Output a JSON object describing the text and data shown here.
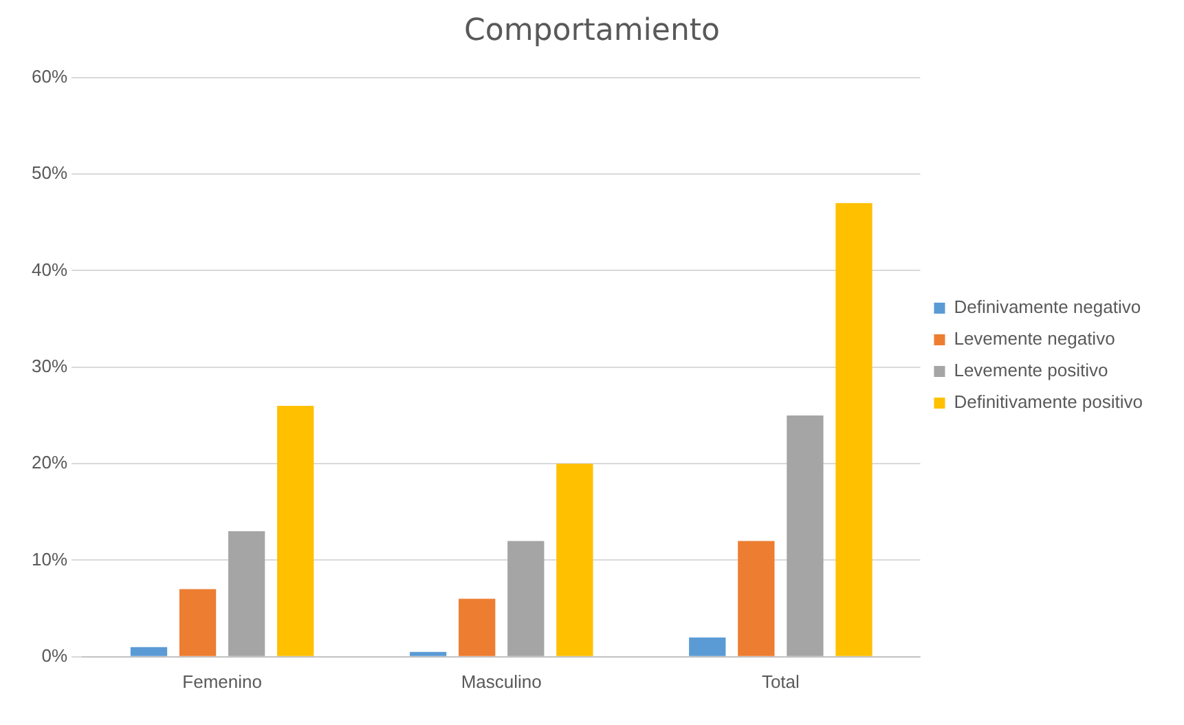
{
  "chart_data": {
    "type": "bar",
    "title": "Comportamiento",
    "categories": [
      "Femenino",
      "Masculino",
      "Total"
    ],
    "series": [
      {
        "name": "Definivamente negativo",
        "color": "#5b9bd5",
        "values": [
          1,
          0.5,
          2
        ]
      },
      {
        "name": "Levemente negativo",
        "color": "#ed7d31",
        "values": [
          7,
          6,
          12
        ]
      },
      {
        "name": "Levemente positivo",
        "color": "#a5a5a5",
        "values": [
          13,
          12,
          25
        ]
      },
      {
        "name": "Definitivamente positivo",
        "color": "#ffc000",
        "values": [
          26,
          20,
          47
        ]
      }
    ],
    "ylim": [
      0,
      60
    ],
    "yticks": [
      {
        "value": 0,
        "label": "0%"
      },
      {
        "value": 10,
        "label": "10%"
      },
      {
        "value": 20,
        "label": "20%"
      },
      {
        "value": 30,
        "label": "30%"
      },
      {
        "value": 40,
        "label": "40%"
      },
      {
        "value": 50,
        "label": "50%"
      },
      {
        "value": 60,
        "label": "60%"
      }
    ],
    "grid": "y",
    "legend": "right"
  }
}
